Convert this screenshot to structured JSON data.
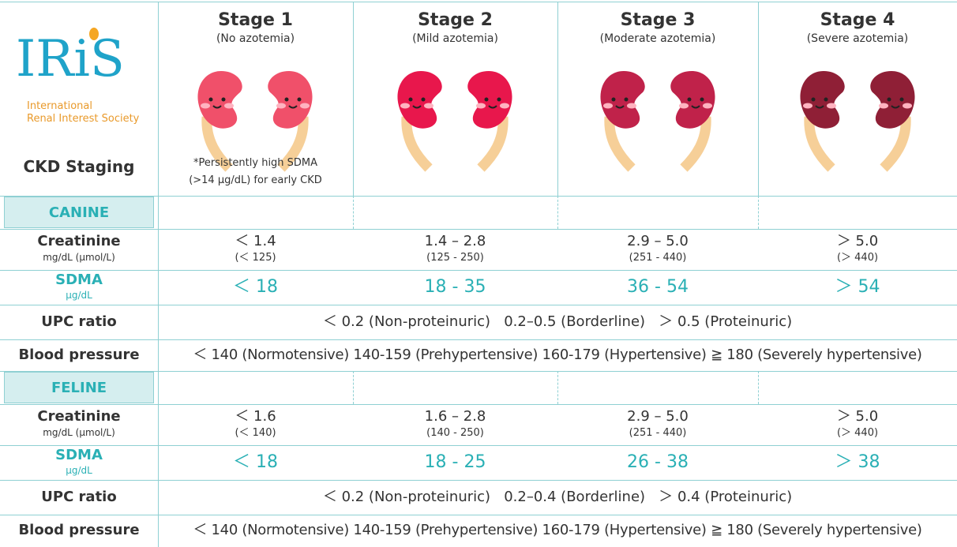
{
  "logo": {
    "name": "IRiS",
    "org_line1": "International",
    "org_line2": "Renal Interest Society"
  },
  "title": "CKD Staging",
  "stages": [
    {
      "name": "Stage 1",
      "subtitle": "(No azotemia)"
    },
    {
      "name": "Stage 2",
      "subtitle": "(Mild azotemia)"
    },
    {
      "name": "Stage 3",
      "subtitle": "(Moderate azotemia)"
    },
    {
      "name": "Stage 4",
      "subtitle": "(Severe azotemia)"
    }
  ],
  "stage1_note": [
    "*Persistently high SDMA",
    "(>14 µg/dL) for early CKD"
  ],
  "sections": [
    {
      "species": "CANINE",
      "creatinine": {
        "label": "Creatinine",
        "unit": "mg/dL (µmol/L)",
        "values": [
          {
            "main": "＜ 1.4",
            "sub": "(＜ 125)"
          },
          {
            "main": "1.4 – 2.8",
            "sub": "(125 - 250)"
          },
          {
            "main": "2.9 – 5.0",
            "sub": "(251 - 440)"
          },
          {
            "main": "＞ 5.0",
            "sub": "(＞ 440)"
          }
        ]
      },
      "sdma": {
        "label": "SDMA",
        "unit": "µg/dL",
        "values": [
          "＜ 18",
          "18 - 35",
          "36 - 54",
          "＞ 54"
        ]
      },
      "upc": {
        "label": "UPC ratio",
        "text": "＜ 0.2 (Non-proteinuric)   0.2–0.5 (Borderline)   ＞ 0.5 (Proteinuric)"
      },
      "bp": {
        "label": "Blood pressure",
        "text": "＜ 140 (Normotensive) 140-159 (Prehypertensive) 160-179 (Hypertensive) ≧ 180 (Severely hypertensive)"
      }
    },
    {
      "species": "FELINE",
      "creatinine": {
        "label": "Creatinine",
        "unit": "mg/dL (µmol/L)",
        "values": [
          {
            "main": "＜ 1.6",
            "sub": "(＜ 140)"
          },
          {
            "main": "1.6 – 2.8",
            "sub": "(140 - 250)"
          },
          {
            "main": "2.9 – 5.0",
            "sub": "(251 - 440)"
          },
          {
            "main": "＞ 5.0",
            "sub": "(＞ 440)"
          }
        ]
      },
      "sdma": {
        "label": "SDMA",
        "unit": "µg/dL",
        "values": [
          "＜ 18",
          "18 - 25",
          "26 - 38",
          "＞ 38"
        ]
      },
      "upc": {
        "label": "UPC ratio",
        "text": "＜ 0.2 (Non-proteinuric)   0.2–0.4 (Borderline)   ＞ 0.4 (Proteinuric)"
      },
      "bp": {
        "label": "Blood pressure",
        "text": "＜ 140 (Normotensive) 140-159 (Prehypertensive) 160-179 (Hypertensive) ≧ 180 (Severely hypertensive)"
      }
    }
  ]
}
